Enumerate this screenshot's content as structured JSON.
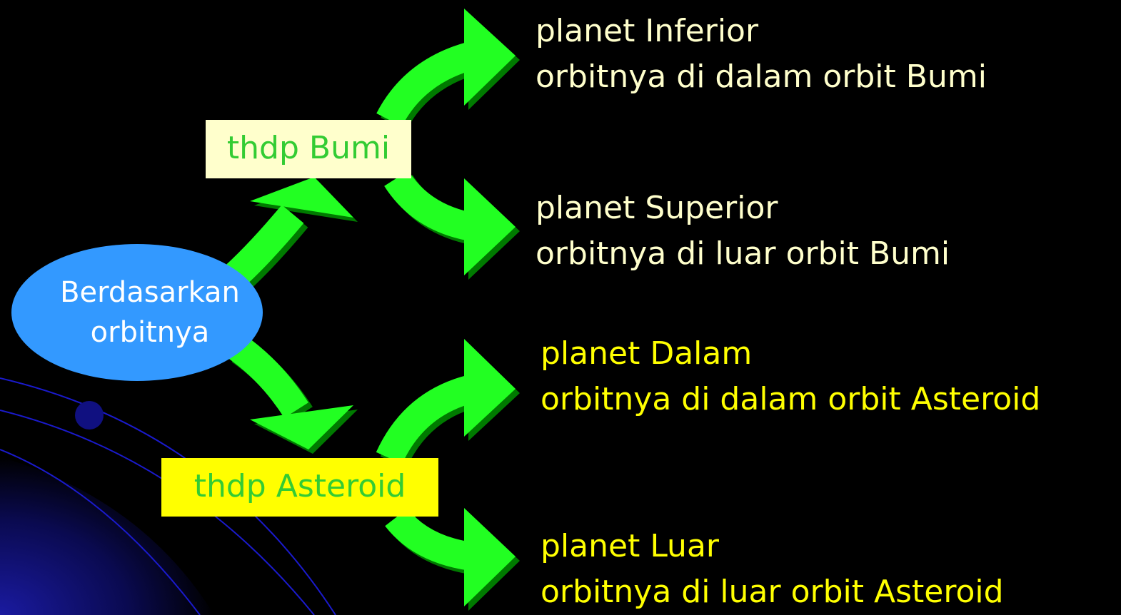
{
  "root": {
    "lines": [
      "Berdasarkan",
      "orbitnya"
    ]
  },
  "branches": [
    {
      "label": "thdp Bumi",
      "children": [
        {
          "title": "planet Inferior",
          "description": "orbitnya di dalam orbit Bumi"
        },
        {
          "title": "planet Superior",
          "description": "orbitnya di luar orbit Bumi"
        }
      ]
    },
    {
      "label": "thdp Asteroid",
      "children": [
        {
          "title": "planet Dalam",
          "description": "orbitnya di dalam orbit Asteroid"
        },
        {
          "title": "planet Luar",
          "description": "orbitnya di luar orbit Asteroid"
        }
      ]
    }
  ]
}
